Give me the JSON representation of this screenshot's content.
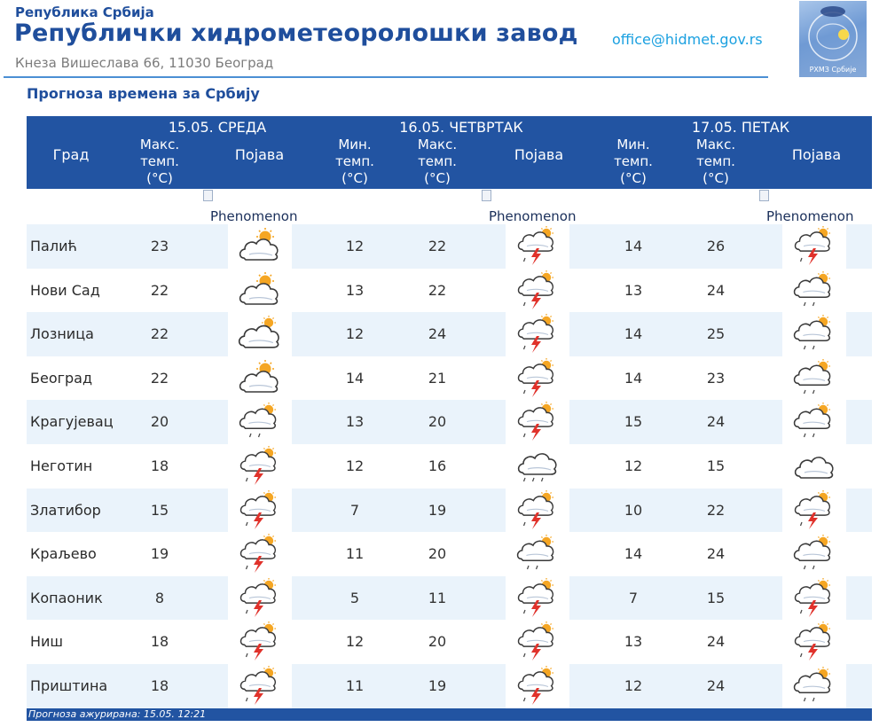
{
  "header": {
    "small_title": "Република Србија",
    "title": "Републички хидрометеоролошки завод",
    "address": "Кнеза Вишеслава 66, 11030 Београд",
    "email": "office@hidmet.gov.rs",
    "logo_text": "РХМЗ Србије"
  },
  "page_heading": "Прогноза времена за Србију",
  "table": {
    "days": [
      {
        "title": "15.05. СРЕДА"
      },
      {
        "title": "16.05. ЧЕТВРТАК"
      },
      {
        "title": "17.05. ПЕТАК"
      }
    ],
    "labels": {
      "city": "Град",
      "max": [
        "Макс.",
        "темп.",
        "(°C)"
      ],
      "min": [
        "Мин.",
        "темп.",
        "(°C)"
      ],
      "phenomenon": "Појава",
      "phenomenon_alt": "Phenomenon"
    },
    "rows": [
      {
        "city": "Палић",
        "d1_max": "23",
        "d1_icon": "partly-cloudy-icon",
        "d2_min": "12",
        "d2_max": "22",
        "d2_icon": "thunderstorm-icon",
        "d3_min": "14",
        "d3_max": "26",
        "d3_icon": "thunderstorm-icon"
      },
      {
        "city": "Нови Сад",
        "d1_max": "22",
        "d1_icon": "partly-cloudy-icon",
        "d2_min": "13",
        "d2_max": "22",
        "d2_icon": "thunderstorm-icon",
        "d3_min": "13",
        "d3_max": "24",
        "d3_icon": "cloudy-showers-icon"
      },
      {
        "city": "Лозница",
        "d1_max": "22",
        "d1_icon": "mostly-cloudy-icon",
        "d2_min": "12",
        "d2_max": "24",
        "d2_icon": "thunderstorm-icon",
        "d3_min": "14",
        "d3_max": "25",
        "d3_icon": "cloudy-showers-icon"
      },
      {
        "city": "Београд",
        "d1_max": "22",
        "d1_icon": "partly-cloudy-icon",
        "d2_min": "14",
        "d2_max": "21",
        "d2_icon": "thunderstorm-icon",
        "d3_min": "14",
        "d3_max": "23",
        "d3_icon": "cloudy-showers-icon"
      },
      {
        "city": "Крагујевац",
        "d1_max": "20",
        "d1_icon": "cloudy-showers-icon",
        "d2_min": "13",
        "d2_max": "20",
        "d2_icon": "thunderstorm-icon",
        "d3_min": "15",
        "d3_max": "24",
        "d3_icon": "cloudy-showers-icon"
      },
      {
        "city": "Неготин",
        "d1_max": "18",
        "d1_icon": "thunderstorm-icon",
        "d2_min": "12",
        "d2_max": "16",
        "d2_icon": "rain-cloud-icon",
        "d3_min": "12",
        "d3_max": "15",
        "d3_icon": "overcast-icon"
      },
      {
        "city": "Златибор",
        "d1_max": "15",
        "d1_icon": "thunderstorm-icon",
        "d2_min": "7",
        "d2_max": "19",
        "d2_icon": "thunderstorm-icon",
        "d3_min": "10",
        "d3_max": "22",
        "d3_icon": "thunderstorm-icon"
      },
      {
        "city": "Краљево",
        "d1_max": "19",
        "d1_icon": "thunderstorm-icon",
        "d2_min": "11",
        "d2_max": "20",
        "d2_icon": "cloudy-showers-icon",
        "d3_min": "14",
        "d3_max": "24",
        "d3_icon": "cloudy-showers-icon"
      },
      {
        "city": "Копаоник",
        "d1_max": "8",
        "d1_icon": "thunderstorm-icon",
        "d2_min": "5",
        "d2_max": "11",
        "d2_icon": "thunderstorm-icon",
        "d3_min": "7",
        "d3_max": "15",
        "d3_icon": "thunderstorm-icon"
      },
      {
        "city": "Ниш",
        "d1_max": "18",
        "d1_icon": "thunderstorm-icon",
        "d2_min": "12",
        "d2_max": "20",
        "d2_icon": "thunderstorm-icon",
        "d3_min": "13",
        "d3_max": "24",
        "d3_icon": "thunderstorm-icon"
      },
      {
        "city": "Приштина",
        "d1_max": "18",
        "d1_icon": "thunderstorm-icon",
        "d2_min": "11",
        "d2_max": "19",
        "d2_icon": "thunderstorm-icon",
        "d3_min": "12",
        "d3_max": "24",
        "d3_icon": "cloudy-showers-icon"
      }
    ]
  },
  "footer": "Прогноза ажурирана:  15.05. 12:21",
  "colors": {
    "brand_blue": "#1f4e9c",
    "table_header": "#2254a2",
    "row_stripe": "#eaf3fb",
    "email": "#1aa0e0",
    "sun": "#f5a623",
    "bolt": "#e0322b"
  }
}
